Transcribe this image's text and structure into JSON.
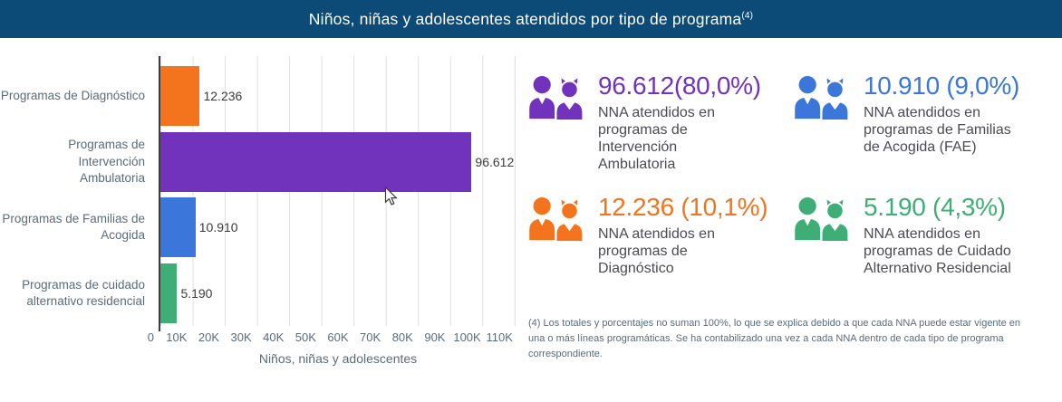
{
  "header": {
    "title": "Niños, niñas y adolescentes atendidos por tipo de programa",
    "footnote_ref": "(4)",
    "bg_color": "#0C4B77"
  },
  "chart_data": {
    "type": "bar",
    "orientation": "horizontal",
    "categories": [
      "Programas de Diagnóstico",
      "Programas de Intervención\nAmbulatoria",
      "Programas de Familias de\nAcogida",
      "Programas de cuidado\nalternativo residencial"
    ],
    "values": [
      12236,
      96612,
      10910,
      5190
    ],
    "value_labels": [
      "12.236",
      "96.612",
      "10.910",
      "5.190"
    ],
    "bar_colors": [
      "#F4731D",
      "#7132BC",
      "#3B76DB",
      "#3EAE76"
    ],
    "xlabel": "Niños, niñas y adolescentes",
    "x_ticks": [
      "0",
      "10K",
      "20K",
      "30K",
      "40K",
      "50K",
      "60K",
      "70K",
      "80K",
      "90K",
      "100K",
      "110K"
    ],
    "xlim": [
      0,
      110000
    ],
    "grid": "vertical-light-gray",
    "title": "Niños, niñas y adolescentes atendidos por tipo de programa(4)"
  },
  "stats": [
    {
      "value": "96.612(80,0%)",
      "label": "NNA atendidos en\nprogramas de\nIntervención\nAmbulatoria",
      "color": "#7132BC",
      "icon": "children-pair-icon"
    },
    {
      "value": "10.910 (9,0%)",
      "label": "NNA atendidos en\nprogramas de Familias\nde Acogida (FAE)",
      "color": "#3B76DB",
      "icon": "children-pair-icon"
    },
    {
      "value": "12.236 (10,1%)",
      "label": "NNA atendidos en\nprogramas de\nDiagnóstico",
      "color": "#F4731D",
      "icon": "children-pair-icon"
    },
    {
      "value": "5.190 (4,3%)",
      "label": "NNA atendidos en\nprogramas de Cuidado\nAlternativo Residencial",
      "color": "#3EAE76",
      "icon": "children-pair-icon"
    }
  ],
  "footnote": "(4) Los totales y porcentajes no suman 100%, lo que se explica debido a que cada NNA puede estar vigente en una o más líneas programáticas. Se ha contabilizado una vez a cada NNA dentro de cada tipo de programa correspondiente."
}
